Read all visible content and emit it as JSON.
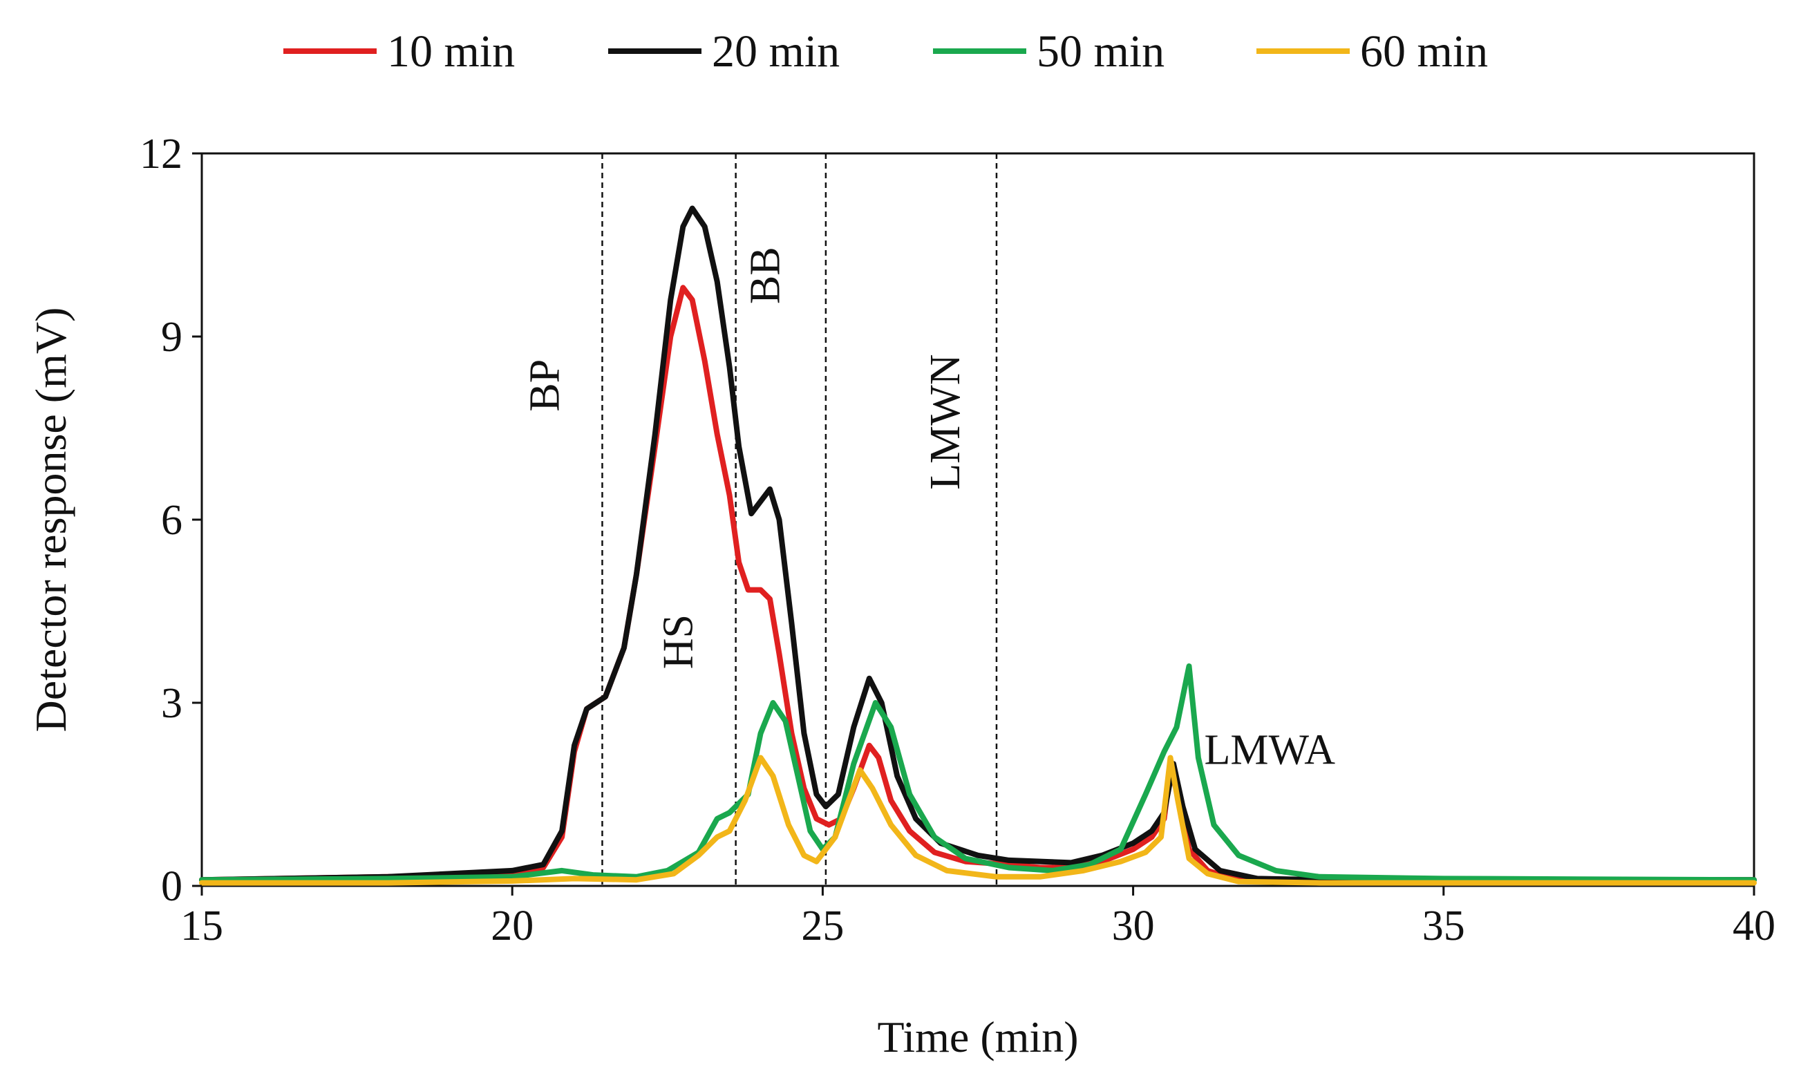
{
  "chart_data": {
    "type": "line",
    "title": "",
    "xlabel": "Time (min)",
    "ylabel": "Detector response (mV)",
    "xlim": [
      15,
      40
    ],
    "ylim": [
      0,
      12
    ],
    "xticks": [
      15,
      20,
      25,
      30,
      35,
      40
    ],
    "yticks": [
      0,
      3,
      6,
      9,
      12
    ],
    "grid": false,
    "legend_position": "top",
    "regions": [
      {
        "label": "BP",
        "boundary": 21.45
      },
      {
        "label": "HS",
        "boundary": 23.6
      },
      {
        "label": "BB",
        "boundary": 25.05
      },
      {
        "label": "LMWN",
        "boundary": 27.8
      },
      {
        "label": "LMWA",
        "boundary": null
      }
    ],
    "series": [
      {
        "name": "10 min",
        "color": "#e02020",
        "points": [
          [
            15,
            0.1
          ],
          [
            18,
            0.15
          ],
          [
            20,
            0.2
          ],
          [
            20.5,
            0.3
          ],
          [
            20.8,
            0.8
          ],
          [
            21.0,
            2.2
          ],
          [
            21.2,
            2.9
          ],
          [
            21.5,
            3.1
          ],
          [
            21.8,
            3.9
          ],
          [
            22.0,
            5.1
          ],
          [
            22.3,
            7.2
          ],
          [
            22.55,
            9.0
          ],
          [
            22.75,
            9.8
          ],
          [
            22.9,
            9.6
          ],
          [
            23.1,
            8.6
          ],
          [
            23.3,
            7.4
          ],
          [
            23.5,
            6.4
          ],
          [
            23.65,
            5.3
          ],
          [
            23.8,
            4.85
          ],
          [
            24.0,
            4.85
          ],
          [
            24.15,
            4.7
          ],
          [
            24.3,
            3.8
          ],
          [
            24.5,
            2.5
          ],
          [
            24.7,
            1.6
          ],
          [
            24.9,
            1.1
          ],
          [
            25.1,
            1.0
          ],
          [
            25.3,
            1.1
          ],
          [
            25.5,
            1.6
          ],
          [
            25.75,
            2.3
          ],
          [
            25.9,
            2.1
          ],
          [
            26.1,
            1.4
          ],
          [
            26.4,
            0.9
          ],
          [
            26.8,
            0.55
          ],
          [
            27.3,
            0.4
          ],
          [
            28.0,
            0.35
          ],
          [
            28.5,
            0.3
          ],
          [
            29.0,
            0.3
          ],
          [
            29.5,
            0.4
          ],
          [
            30.0,
            0.6
          ],
          [
            30.3,
            0.8
          ],
          [
            30.5,
            1.1
          ],
          [
            30.6,
            1.9
          ],
          [
            30.72,
            1.5
          ],
          [
            30.9,
            0.6
          ],
          [
            31.2,
            0.25
          ],
          [
            31.6,
            0.12
          ],
          [
            32.5,
            0.1
          ],
          [
            40,
            0.1
          ]
        ]
      },
      {
        "name": "20 min",
        "color": "#111111",
        "points": [
          [
            15,
            0.1
          ],
          [
            18,
            0.15
          ],
          [
            20,
            0.25
          ],
          [
            20.5,
            0.35
          ],
          [
            20.8,
            0.9
          ],
          [
            21.0,
            2.3
          ],
          [
            21.2,
            2.9
          ],
          [
            21.5,
            3.1
          ],
          [
            21.8,
            3.9
          ],
          [
            22.0,
            5.1
          ],
          [
            22.3,
            7.4
          ],
          [
            22.55,
            9.6
          ],
          [
            22.75,
            10.8
          ],
          [
            22.9,
            11.1
          ],
          [
            23.1,
            10.8
          ],
          [
            23.3,
            9.9
          ],
          [
            23.5,
            8.5
          ],
          [
            23.65,
            7.2
          ],
          [
            23.85,
            6.1
          ],
          [
            24.0,
            6.3
          ],
          [
            24.15,
            6.5
          ],
          [
            24.3,
            6.0
          ],
          [
            24.5,
            4.3
          ],
          [
            24.7,
            2.5
          ],
          [
            24.9,
            1.5
          ],
          [
            25.05,
            1.3
          ],
          [
            25.25,
            1.5
          ],
          [
            25.5,
            2.6
          ],
          [
            25.75,
            3.4
          ],
          [
            25.95,
            3.0
          ],
          [
            26.2,
            1.8
          ],
          [
            26.5,
            1.1
          ],
          [
            26.9,
            0.7
          ],
          [
            27.5,
            0.5
          ],
          [
            28.0,
            0.42
          ],
          [
            29.0,
            0.38
          ],
          [
            29.5,
            0.5
          ],
          [
            30.0,
            0.7
          ],
          [
            30.3,
            0.9
          ],
          [
            30.5,
            1.2
          ],
          [
            30.65,
            2.0
          ],
          [
            30.8,
            1.3
          ],
          [
            31.0,
            0.6
          ],
          [
            31.4,
            0.25
          ],
          [
            32.0,
            0.12
          ],
          [
            33.0,
            0.1
          ],
          [
            40,
            0.1
          ]
        ]
      },
      {
        "name": "50 min",
        "color": "#1aa84e",
        "points": [
          [
            15,
            0.1
          ],
          [
            18,
            0.12
          ],
          [
            20,
            0.15
          ],
          [
            20.8,
            0.25
          ],
          [
            21.3,
            0.18
          ],
          [
            22.0,
            0.15
          ],
          [
            22.5,
            0.25
          ],
          [
            23.0,
            0.55
          ],
          [
            23.3,
            1.1
          ],
          [
            23.5,
            1.2
          ],
          [
            23.8,
            1.5
          ],
          [
            24.0,
            2.5
          ],
          [
            24.2,
            3.0
          ],
          [
            24.4,
            2.7
          ],
          [
            24.6,
            1.8
          ],
          [
            24.8,
            0.9
          ],
          [
            25.0,
            0.6
          ],
          [
            25.2,
            0.8
          ],
          [
            25.5,
            2.0
          ],
          [
            25.85,
            3.0
          ],
          [
            26.1,
            2.6
          ],
          [
            26.4,
            1.5
          ],
          [
            26.8,
            0.8
          ],
          [
            27.3,
            0.45
          ],
          [
            28.0,
            0.3
          ],
          [
            28.7,
            0.25
          ],
          [
            29.3,
            0.35
          ],
          [
            29.8,
            0.6
          ],
          [
            30.2,
            1.5
          ],
          [
            30.5,
            2.2
          ],
          [
            30.7,
            2.6
          ],
          [
            30.9,
            3.6
          ],
          [
            31.05,
            2.1
          ],
          [
            31.3,
            1.0
          ],
          [
            31.7,
            0.5
          ],
          [
            32.3,
            0.25
          ],
          [
            33.0,
            0.15
          ],
          [
            35.0,
            0.12
          ],
          [
            40,
            0.1
          ]
        ]
      },
      {
        "name": "60 min",
        "color": "#f2b619",
        "points": [
          [
            15,
            0.05
          ],
          [
            18,
            0.05
          ],
          [
            20,
            0.08
          ],
          [
            21.0,
            0.12
          ],
          [
            22.0,
            0.1
          ],
          [
            22.6,
            0.2
          ],
          [
            23.0,
            0.5
          ],
          [
            23.3,
            0.8
          ],
          [
            23.5,
            0.9
          ],
          [
            23.75,
            1.4
          ],
          [
            24.0,
            2.1
          ],
          [
            24.2,
            1.8
          ],
          [
            24.45,
            1.0
          ],
          [
            24.7,
            0.5
          ],
          [
            24.9,
            0.4
          ],
          [
            25.2,
            0.8
          ],
          [
            25.6,
            1.9
          ],
          [
            25.8,
            1.6
          ],
          [
            26.1,
            1.0
          ],
          [
            26.5,
            0.5
          ],
          [
            27.0,
            0.25
          ],
          [
            27.8,
            0.15
          ],
          [
            28.5,
            0.15
          ],
          [
            29.2,
            0.25
          ],
          [
            29.8,
            0.4
          ],
          [
            30.2,
            0.55
          ],
          [
            30.45,
            0.8
          ],
          [
            30.6,
            2.1
          ],
          [
            30.72,
            1.4
          ],
          [
            30.9,
            0.45
          ],
          [
            31.2,
            0.2
          ],
          [
            31.7,
            0.07
          ],
          [
            33.0,
            0.05
          ],
          [
            40,
            0.05
          ]
        ]
      }
    ]
  }
}
